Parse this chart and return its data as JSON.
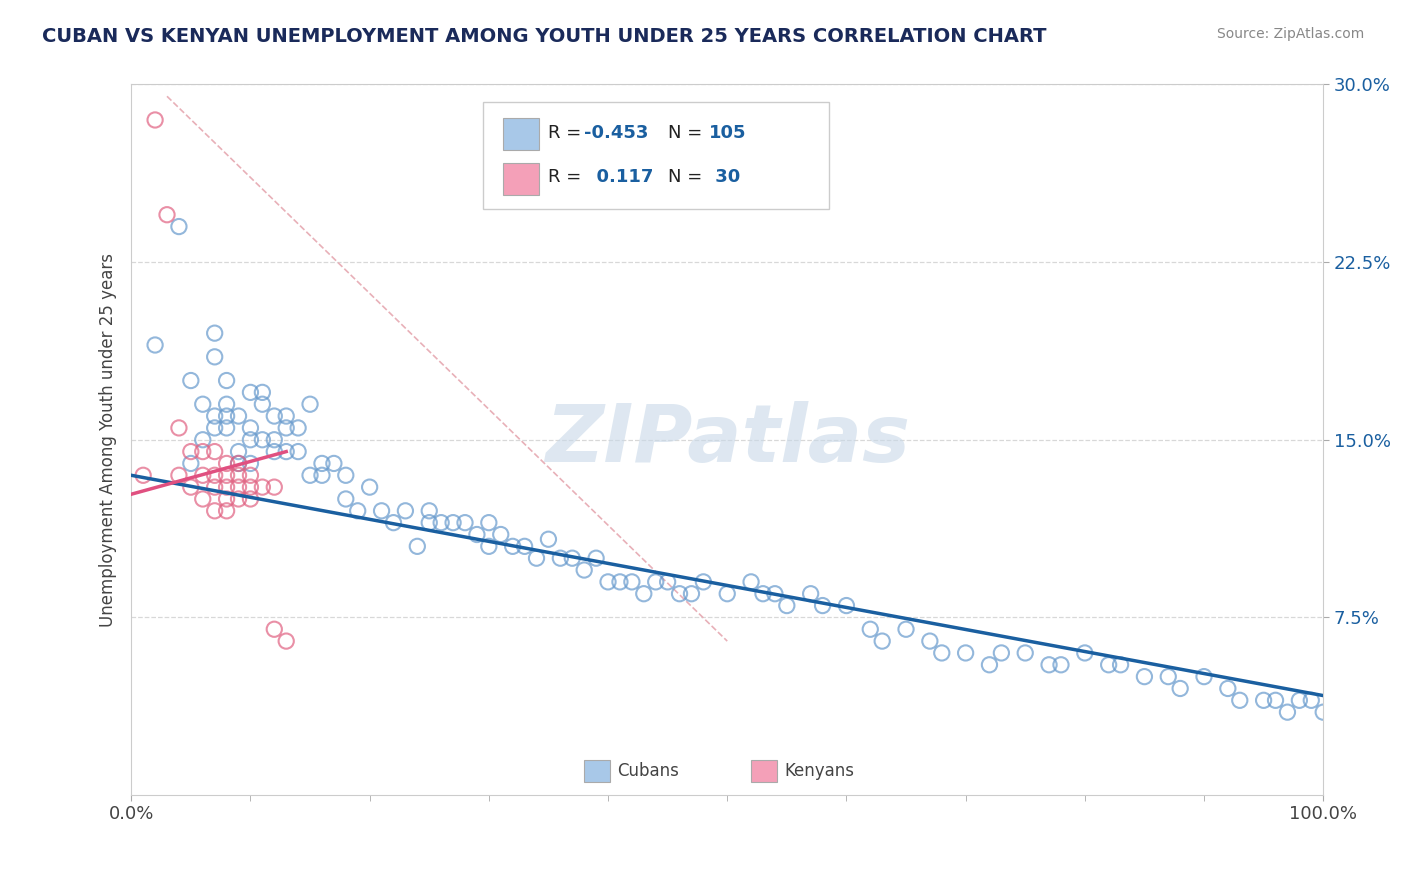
{
  "title": "CUBAN VS KENYAN UNEMPLOYMENT AMONG YOUTH UNDER 25 YEARS CORRELATION CHART",
  "source": "Source: ZipAtlas.com",
  "ylabel": "Unemployment Among Youth under 25 years",
  "xlim": [
    0,
    1.0
  ],
  "ylim": [
    0,
    0.3
  ],
  "x_ticks": [
    0.0,
    1.0
  ],
  "x_tick_labels": [
    "0.0%",
    "100.0%"
  ],
  "y_ticks": [
    0.075,
    0.15,
    0.225,
    0.3
  ],
  "y_tick_labels": [
    "7.5%",
    "15.0%",
    "22.5%",
    "30.0%"
  ],
  "cubans_x": [
    0.02,
    0.04,
    0.05,
    0.06,
    0.06,
    0.07,
    0.07,
    0.07,
    0.08,
    0.08,
    0.08,
    0.09,
    0.09,
    0.1,
    0.1,
    0.1,
    0.11,
    0.11,
    0.12,
    0.12,
    0.13,
    0.13,
    0.14,
    0.14,
    0.15,
    0.16,
    0.17,
    0.18,
    0.18,
    0.19,
    0.2,
    0.21,
    0.22,
    0.23,
    0.24,
    0.25,
    0.25,
    0.26,
    0.27,
    0.28,
    0.29,
    0.3,
    0.3,
    0.31,
    0.32,
    0.33,
    0.34,
    0.35,
    0.36,
    0.37,
    0.38,
    0.39,
    0.4,
    0.41,
    0.42,
    0.43,
    0.44,
    0.45,
    0.46,
    0.47,
    0.48,
    0.5,
    0.52,
    0.53,
    0.54,
    0.55,
    0.57,
    0.58,
    0.6,
    0.62,
    0.63,
    0.65,
    0.67,
    0.68,
    0.7,
    0.72,
    0.73,
    0.75,
    0.77,
    0.78,
    0.8,
    0.82,
    0.83,
    0.85,
    0.87,
    0.88,
    0.9,
    0.92,
    0.93,
    0.95,
    0.96,
    0.97,
    0.98,
    0.99,
    1.0,
    0.05,
    0.07,
    0.08,
    0.09,
    0.1,
    0.11,
    0.12,
    0.13,
    0.15,
    0.16
  ],
  "cubans_y": [
    0.19,
    0.24,
    0.175,
    0.165,
    0.15,
    0.185,
    0.195,
    0.155,
    0.165,
    0.175,
    0.155,
    0.16,
    0.145,
    0.17,
    0.155,
    0.14,
    0.165,
    0.15,
    0.16,
    0.145,
    0.155,
    0.16,
    0.145,
    0.155,
    0.135,
    0.14,
    0.14,
    0.135,
    0.125,
    0.12,
    0.13,
    0.12,
    0.115,
    0.12,
    0.105,
    0.12,
    0.115,
    0.115,
    0.115,
    0.115,
    0.11,
    0.105,
    0.115,
    0.11,
    0.105,
    0.105,
    0.1,
    0.108,
    0.1,
    0.1,
    0.095,
    0.1,
    0.09,
    0.09,
    0.09,
    0.085,
    0.09,
    0.09,
    0.085,
    0.085,
    0.09,
    0.085,
    0.09,
    0.085,
    0.085,
    0.08,
    0.085,
    0.08,
    0.08,
    0.07,
    0.065,
    0.07,
    0.065,
    0.06,
    0.06,
    0.055,
    0.06,
    0.06,
    0.055,
    0.055,
    0.06,
    0.055,
    0.055,
    0.05,
    0.05,
    0.045,
    0.05,
    0.045,
    0.04,
    0.04,
    0.04,
    0.035,
    0.04,
    0.04,
    0.035,
    0.14,
    0.16,
    0.16,
    0.14,
    0.15,
    0.17,
    0.15,
    0.145,
    0.165,
    0.135
  ],
  "kenyans_x": [
    0.01,
    0.02,
    0.03,
    0.04,
    0.04,
    0.05,
    0.05,
    0.06,
    0.06,
    0.06,
    0.07,
    0.07,
    0.07,
    0.07,
    0.08,
    0.08,
    0.08,
    0.08,
    0.08,
    0.09,
    0.09,
    0.09,
    0.09,
    0.1,
    0.1,
    0.1,
    0.11,
    0.12,
    0.12,
    0.13
  ],
  "kenyans_y": [
    0.135,
    0.285,
    0.245,
    0.155,
    0.135,
    0.145,
    0.13,
    0.145,
    0.135,
    0.125,
    0.145,
    0.135,
    0.13,
    0.12,
    0.14,
    0.135,
    0.13,
    0.125,
    0.12,
    0.14,
    0.135,
    0.13,
    0.125,
    0.135,
    0.13,
    0.125,
    0.13,
    0.13,
    0.07,
    0.065
  ],
  "blue_line_x": [
    0.0,
    1.0
  ],
  "blue_line_y": [
    0.135,
    0.042
  ],
  "pink_line_x": [
    0.0,
    0.13
  ],
  "pink_line_y": [
    0.127,
    0.145
  ],
  "diag_line_x": [
    0.03,
    0.5
  ],
  "diag_line_y": [
    0.295,
    0.065
  ],
  "blue_color": "#a8c8e8",
  "pink_color": "#f4a0b8",
  "blue_edge_color": "#6699cc",
  "pink_edge_color": "#e06080",
  "blue_line_color": "#1a5fa0",
  "pink_line_color": "#e05080",
  "diag_line_color": "#e8b0b8",
  "watermark": "ZIPatlas",
  "watermark_color": "#c8d8e8",
  "title_color": "#1a2a5a",
  "source_color": "#888888",
  "legend_r1": "R = -0.453",
  "legend_n1": "N = 105",
  "legend_r2": "R =  0.117",
  "legend_n2": "N =  30",
  "legend_num_color": "#1a5fa0",
  "tick_color": "#1a5fa0",
  "grid_color": "#d8d8d8"
}
